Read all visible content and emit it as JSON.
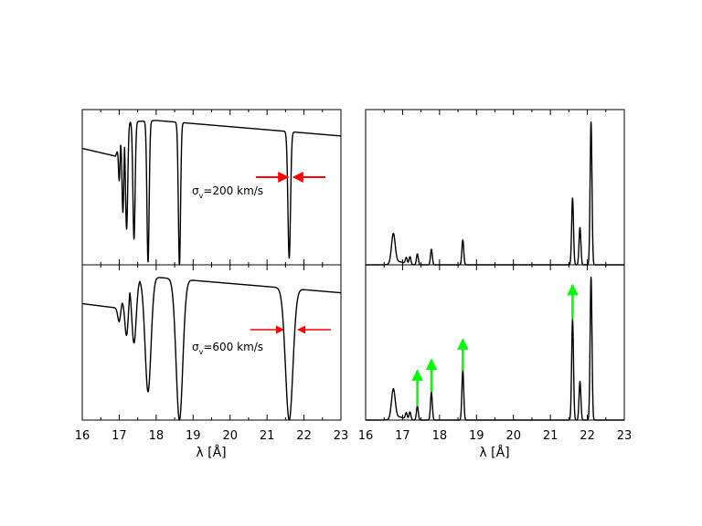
{
  "chart_data": [
    {
      "panel": "top-left",
      "type": "line",
      "xlim": [
        16,
        23
      ],
      "annotation": {
        "symbol": "σ",
        "subscript": "v",
        "text": "=200  km/s"
      },
      "arrow_color": "#ff0000",
      "arrow_at_x": 21.6,
      "continuum": [
        [
          16,
          0.75
        ],
        [
          16.9,
          0.7
        ],
        [
          17.2,
          0.92
        ],
        [
          18,
          0.93
        ],
        [
          23,
          0.83
        ]
      ],
      "lines": [
        {
          "center": 17.0,
          "depth": 0.3,
          "width": 0.02
        },
        {
          "center": 17.1,
          "depth": 0.6,
          "width": 0.025
        },
        {
          "center": 17.2,
          "depth": 0.75,
          "width": 0.03
        },
        {
          "center": 17.4,
          "depth": 0.82,
          "width": 0.03
        },
        {
          "center": 17.78,
          "depth": 0.98,
          "width": 0.03
        },
        {
          "center": 18.63,
          "depth": 1.0,
          "width": 0.03
        },
        {
          "center": 21.6,
          "depth": 0.95,
          "width": 0.035
        }
      ]
    },
    {
      "panel": "top-right",
      "type": "line",
      "xlim": [
        16,
        23
      ],
      "peaks": [
        {
          "x": 16.75,
          "height": 0.19
        },
        {
          "x": 17.1,
          "height": 0.04
        },
        {
          "x": 17.2,
          "height": 0.05
        },
        {
          "x": 17.4,
          "height": 0.07
        },
        {
          "x": 17.78,
          "height": 0.1
        },
        {
          "x": 18.63,
          "height": 0.16
        },
        {
          "x": 21.6,
          "height": 0.43
        },
        {
          "x": 21.8,
          "height": 0.24
        },
        {
          "x": 22.1,
          "height": 0.92
        }
      ]
    },
    {
      "panel": "bottom-left",
      "type": "line",
      "xlim": [
        16,
        23
      ],
      "annotation": {
        "symbol": "σ",
        "subscript": "v",
        "text": "=600  km/s"
      },
      "arrow_color": "#ff0000",
      "arrow_at_x": 21.6,
      "continuum": [
        [
          16,
          0.75
        ],
        [
          17.0,
          0.72
        ],
        [
          17.3,
          0.9
        ],
        [
          18,
          0.92
        ],
        [
          23,
          0.82
        ]
      ],
      "lines": [
        {
          "center": 17.0,
          "depth": 0.12,
          "width": 0.04
        },
        {
          "center": 17.2,
          "depth": 0.35,
          "width": 0.05
        },
        {
          "center": 17.4,
          "depth": 0.45,
          "width": 0.06
        },
        {
          "center": 17.78,
          "depth": 0.8,
          "width": 0.08
        },
        {
          "center": 18.63,
          "depth": 1.0,
          "width": 0.09
        },
        {
          "center": 21.6,
          "depth": 1.0,
          "width": 0.1
        }
      ]
    },
    {
      "panel": "bottom-right",
      "type": "line",
      "xlim": [
        16,
        23
      ],
      "arrow_color": "#00ff00",
      "peaks": [
        {
          "x": 16.75,
          "height": 0.19
        },
        {
          "x": 17.1,
          "height": 0.04
        },
        {
          "x": 17.2,
          "height": 0.05
        },
        {
          "x": 17.4,
          "height": 0.09
        },
        {
          "x": 17.78,
          "height": 0.18
        },
        {
          "x": 18.63,
          "height": 0.32
        },
        {
          "x": 21.6,
          "height": 0.65
        },
        {
          "x": 21.8,
          "height": 0.25
        },
        {
          "x": 22.1,
          "height": 0.92
        }
      ],
      "green_arrows": [
        {
          "x": 17.4,
          "from": 0.09,
          "to": 0.32
        },
        {
          "x": 17.78,
          "from": 0.18,
          "to": 0.39
        },
        {
          "x": 18.63,
          "from": 0.32,
          "to": 0.52
        },
        {
          "x": 21.6,
          "from": 0.65,
          "to": 0.87
        }
      ]
    }
  ],
  "axes": {
    "x_ticks": [
      "16",
      "17",
      "18",
      "19",
      "20",
      "21",
      "22",
      "23"
    ],
    "xlabel": "λ [Å]"
  }
}
